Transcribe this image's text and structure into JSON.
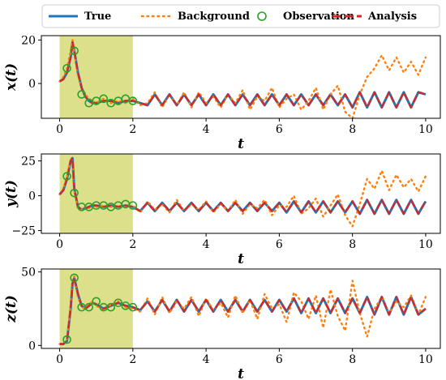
{
  "legend": [
    {
      "label": "True",
      "color": "#1f77b4",
      "style": "solid"
    },
    {
      "label": "Background",
      "color": "#ff7f0e",
      "style": "dotted"
    },
    {
      "label": "Observation",
      "color": "#2ca02c",
      "style": "circle"
    },
    {
      "label": "Analysis",
      "color": "#d62728",
      "style": "dashed"
    }
  ],
  "window_color": "#dde08a",
  "chart_data": [
    {
      "type": "line",
      "ylabel": "x(t)",
      "xlabel": "t",
      "xlim": [
        -0.5,
        10.4
      ],
      "ylim": [
        -16,
        22
      ],
      "xticks": [
        0,
        2,
        4,
        6,
        8,
        10
      ],
      "yticks": [
        20,
        0
      ],
      "assimilation_window": [
        0,
        2
      ],
      "x": [
        0,
        0.1,
        0.2,
        0.3,
        0.35,
        0.4,
        0.5,
        0.6,
        0.7,
        0.8,
        0.9,
        1,
        1.2,
        1.4,
        1.6,
        1.8,
        2,
        2.2,
        2.4,
        2.6,
        2.8,
        3,
        3.2,
        3.4,
        3.6,
        3.8,
        4,
        4.2,
        4.4,
        4.6,
        4.8,
        5,
        5.2,
        5.4,
        5.6,
        5.8,
        6,
        6.2,
        6.4,
        6.6,
        6.8,
        7,
        7.2,
        7.4,
        7.6,
        7.8,
        8,
        8.2,
        8.4,
        8.6,
        8.8,
        9,
        9.2,
        9.4,
        9.6,
        9.8,
        10
      ],
      "series": [
        {
          "name": "True",
          "values": [
            1,
            2,
            5,
            12,
            19,
            15,
            5,
            -2,
            -6,
            -8,
            -9,
            -9,
            -8,
            -8,
            -9,
            -8,
            -8,
            -9,
            -10,
            -5,
            -10,
            -5,
            -10,
            -5,
            -10,
            -5,
            -10,
            -5,
            -10,
            -5,
            -10,
            -5,
            -10,
            -5,
            -10,
            -5,
            -10,
            -5,
            -10,
            -5,
            -10,
            -5,
            -10,
            -5,
            -10,
            -5,
            -11,
            -4,
            -11,
            -4,
            -11,
            -4,
            -11,
            -4,
            -11,
            -4,
            -5
          ]
        },
        {
          "name": "Background",
          "values": [
            1,
            3,
            7,
            15,
            20,
            14,
            4,
            -2,
            -5,
            -7,
            -8,
            -9,
            -7,
            -9,
            -8,
            -9,
            -7,
            -10,
            -9,
            -4,
            -11,
            -5,
            -10,
            -4,
            -11,
            -4,
            -9,
            -6,
            -11,
            -5,
            -9,
            -3,
            -12,
            -6,
            -8,
            -2,
            -11,
            -7,
            -5,
            -12,
            -8,
            -2,
            -12,
            -5,
            -1,
            -13,
            -16,
            -5,
            3,
            7,
            13,
            6,
            12,
            5,
            10,
            4,
            12
          ]
        },
        {
          "name": "Analysis",
          "values": [
            1,
            2,
            5,
            12,
            19,
            15,
            5,
            -2,
            -6,
            -8,
            -9,
            -9,
            -8,
            -8,
            -9,
            -8,
            -8,
            -9,
            -10,
            -5,
            -10,
            -5,
            -10,
            -5,
            -10,
            -5,
            -10,
            -5,
            -10,
            -5,
            -10,
            -5,
            -10,
            -5,
            -10,
            -5,
            -10,
            -5,
            -10,
            -5,
            -10,
            -5,
            -10,
            -5,
            -10,
            -5,
            -11,
            -4,
            -11,
            -4,
            -11,
            -4,
            -11,
            -4,
            -11,
            -4,
            -5
          ]
        }
      ],
      "observations": {
        "x": [
          0.2,
          0.4,
          0.6,
          0.8,
          1.0,
          1.2,
          1.4,
          1.6,
          1.8,
          2.0
        ],
        "y": [
          7,
          15,
          -5,
          -9,
          -8,
          -7,
          -9,
          -8,
          -7,
          -8
        ]
      }
    },
    {
      "type": "line",
      "ylabel": "y(t)",
      "xlabel": "t",
      "xlim": [
        -0.5,
        10.4
      ],
      "ylim": [
        -27,
        30
      ],
      "xticks": [
        0,
        2,
        4,
        6,
        8,
        10
      ],
      "yticks": [
        25,
        0,
        -25
      ],
      "assimilation_window": [
        0,
        2
      ],
      "x": [
        0,
        0.1,
        0.2,
        0.3,
        0.35,
        0.4,
        0.5,
        0.6,
        0.7,
        0.8,
        0.9,
        1,
        1.2,
        1.4,
        1.6,
        1.8,
        2,
        2.2,
        2.4,
        2.6,
        2.8,
        3,
        3.2,
        3.4,
        3.6,
        3.8,
        4,
        4.2,
        4.4,
        4.6,
        4.8,
        5,
        5.2,
        5.4,
        5.6,
        5.8,
        6,
        6.2,
        6.4,
        6.6,
        6.8,
        7,
        7.2,
        7.4,
        7.6,
        7.8,
        8,
        8.2,
        8.4,
        8.6,
        8.8,
        9,
        9.2,
        9.4,
        9.6,
        9.8,
        10
      ],
      "series": [
        {
          "name": "True",
          "values": [
            1,
            4,
            12,
            25,
            27,
            5,
            -8,
            -10,
            -9,
            -8,
            -7,
            -7,
            -8,
            -7,
            -8,
            -7,
            -8,
            -11,
            -5,
            -11,
            -5,
            -11,
            -5,
            -11,
            -5,
            -11,
            -5,
            -11,
            -5,
            -11,
            -5,
            -11,
            -5,
            -11,
            -5,
            -11,
            -5,
            -12,
            -4,
            -12,
            -4,
            -12,
            -4,
            -12,
            -4,
            -12,
            -4,
            -13,
            -3,
            -13,
            -3,
            -13,
            -3,
            -13,
            -3,
            -13,
            -4
          ]
        },
        {
          "name": "Background",
          "values": [
            1,
            5,
            14,
            27,
            25,
            3,
            -9,
            -10,
            -8,
            -9,
            -6,
            -8,
            -7,
            -8,
            -7,
            -8,
            -7,
            -12,
            -4,
            -10,
            -6,
            -12,
            -3,
            -11,
            -6,
            -10,
            -4,
            -12,
            -6,
            -11,
            -3,
            -13,
            -6,
            -9,
            -3,
            -14,
            -7,
            -8,
            0,
            -13,
            -9,
            -2,
            -15,
            -7,
            1,
            -14,
            -22,
            -6,
            12,
            5,
            18,
            4,
            15,
            6,
            12,
            3,
            14
          ]
        },
        {
          "name": "Analysis",
          "values": [
            1,
            4,
            12,
            25,
            27,
            5,
            -8,
            -10,
            -9,
            -8,
            -7,
            -7,
            -8,
            -7,
            -8,
            -7,
            -8,
            -11,
            -5,
            -11,
            -5,
            -11,
            -5,
            -11,
            -5,
            -11,
            -5,
            -11,
            -5,
            -11,
            -5,
            -11,
            -5,
            -11,
            -5,
            -11,
            -5,
            -12,
            -4,
            -12,
            -4,
            -12,
            -4,
            -12,
            -4,
            -12,
            -4,
            -13,
            -3,
            -13,
            -3,
            -13,
            -3,
            -13,
            -3,
            -13,
            -4
          ]
        }
      ],
      "observations": {
        "x": [
          0.2,
          0.4,
          0.6,
          0.8,
          1.0,
          1.2,
          1.4,
          1.6,
          1.8,
          2.0
        ],
        "y": [
          14,
          2,
          -8,
          -8,
          -7,
          -7,
          -8,
          -7,
          -6,
          -7
        ]
      }
    },
    {
      "type": "line",
      "ylabel": "z(t)",
      "xlabel": "t",
      "xlim": [
        -0.5,
        10.4
      ],
      "ylim": [
        -2,
        52
      ],
      "xticks": [
        0,
        2,
        4,
        6,
        8,
        10
      ],
      "yticks": [
        50,
        0
      ],
      "assimilation_window": [
        0,
        2
      ],
      "x": [
        0,
        0.1,
        0.2,
        0.3,
        0.35,
        0.4,
        0.5,
        0.6,
        0.7,
        0.8,
        0.9,
        1,
        1.2,
        1.4,
        1.6,
        1.8,
        2,
        2.2,
        2.4,
        2.6,
        2.8,
        3,
        3.2,
        3.4,
        3.6,
        3.8,
        4,
        4.2,
        4.4,
        4.6,
        4.8,
        5,
        5.2,
        5.4,
        5.6,
        5.8,
        6,
        6.2,
        6.4,
        6.6,
        6.8,
        7,
        7.2,
        7.4,
        7.6,
        7.8,
        8,
        8.2,
        8.4,
        8.6,
        8.8,
        9,
        9.2,
        9.4,
        9.6,
        9.8,
        10
      ],
      "series": [
        {
          "name": "True",
          "values": [
            1,
            1,
            3,
            25,
            42,
            46,
            35,
            27,
            25,
            27,
            29,
            28,
            25,
            27,
            29,
            27,
            26,
            24,
            30,
            23,
            31,
            23,
            31,
            23,
            31,
            23,
            31,
            23,
            31,
            23,
            31,
            23,
            31,
            23,
            31,
            23,
            31,
            23,
            32,
            22,
            32,
            22,
            32,
            22,
            32,
            22,
            32,
            22,
            33,
            21,
            33,
            21,
            33,
            21,
            33,
            21,
            25
          ]
        },
        {
          "name": "Background",
          "values": [
            1,
            1,
            4,
            28,
            45,
            47,
            33,
            26,
            25,
            28,
            30,
            27,
            24,
            28,
            30,
            26,
            25,
            23,
            32,
            21,
            33,
            22,
            30,
            25,
            33,
            20,
            32,
            24,
            29,
            19,
            34,
            22,
            31,
            18,
            35,
            25,
            28,
            16,
            36,
            30,
            18,
            34,
            12,
            38,
            20,
            10,
            44,
            22,
            6,
            25,
            33,
            22,
            30,
            26,
            34,
            21,
            33
          ]
        },
        {
          "name": "Analysis",
          "values": [
            1,
            1,
            3,
            25,
            42,
            46,
            35,
            27,
            25,
            27,
            29,
            28,
            25,
            27,
            29,
            27,
            26,
            24,
            30,
            23,
            31,
            23,
            31,
            23,
            31,
            23,
            31,
            23,
            31,
            23,
            31,
            23,
            31,
            23,
            31,
            23,
            31,
            23,
            32,
            22,
            32,
            22,
            32,
            22,
            32,
            22,
            32,
            22,
            33,
            21,
            33,
            21,
            33,
            21,
            33,
            21,
            25
          ]
        }
      ],
      "observations": {
        "x": [
          0.2,
          0.4,
          0.6,
          0.8,
          1.0,
          1.2,
          1.4,
          1.6,
          1.8,
          2.0
        ],
        "y": [
          4,
          46,
          26,
          26,
          30,
          26,
          26,
          29,
          27,
          26
        ]
      }
    }
  ]
}
